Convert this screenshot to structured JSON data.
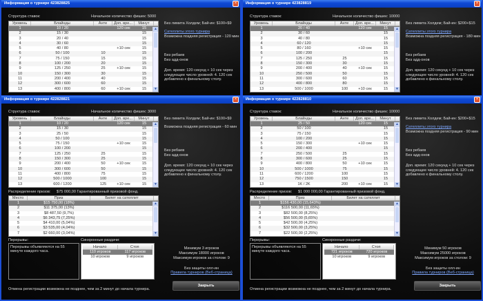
{
  "common": {
    "stakes_label": "Структура ставок:",
    "blind_headers": [
      "Уровень",
      "Блайнды",
      "Анте",
      "Доп. вре...",
      "Минут"
    ],
    "prize_headers": [
      "Место",
      "Приз",
      "Билет на сателлит"
    ],
    "sync_headers": [
      "Начало",
      "Стоп"
    ],
    "prizes_label": "Распределение призов:",
    "breaks_label": "Перерывы:",
    "breaks_text": "Перерывы объявляются на 55 минуте каждого часа.",
    "sync_label": "Синхронные раздачи:",
    "no_rebuys": "Без ребаев",
    "no_addons": "Без адд-онов",
    "extra_time": [
      "Доп. время: 120 секунд + 10 сек через",
      "следующее число уровней: 4. 120 сек",
      "добавлено к финальному столу."
    ],
    "satellites_link": "Сателлиты этого турнира",
    "max_table": "Максимум игроков за столом: 9",
    "no_allin": "Без защиты олл-ин",
    "rules_link": "Правила турниров (Веб-страница)",
    "close_label": "Закрыть",
    "cancel_text": "Отмена регистрации возможна не позднее, чем за 2 минут до начала турнира.",
    "close_icon": "×"
  },
  "windows": [
    {
      "title": "Информация о турнире 423828825",
      "start_chips": "Начальное количество фишек: 5000",
      "game": "Без лимита Холдем; Бай-ин: $100+$9",
      "has_satellites": true,
      "late_reg": "Возможна поздняя регистрация - 120 мин",
      "rows": [
        [
          "1",
          "10 / 20",
          "",
          "120 сек",
          "15"
        ],
        [
          "2",
          "15 / 30",
          "",
          "",
          "15"
        ],
        [
          "3",
          "20 / 40",
          "",
          "",
          "15"
        ],
        [
          "4",
          "30 / 60",
          "",
          "",
          "15"
        ],
        [
          "5",
          "40 / 80",
          "",
          "+10 сек",
          "15"
        ],
        [
          "6",
          "50 / 100",
          "10",
          "",
          "15"
        ],
        [
          "7",
          "75 / 150",
          "15",
          "",
          "15"
        ],
        [
          "8",
          "100 / 200",
          "20",
          "",
          "15"
        ],
        [
          "9",
          "125 / 250",
          "25",
          "+10 сек",
          "15"
        ],
        [
          "10",
          "150 / 300",
          "30",
          "",
          "15"
        ],
        [
          "11",
          "200 / 400",
          "40",
          "",
          "15"
        ],
        [
          "12",
          "300 / 600",
          "60",
          "",
          "15"
        ],
        [
          "13",
          "400 / 800",
          "60",
          "+10 сек",
          "15"
        ]
      ]
    },
    {
      "title": "Информация о турнире 423828819",
      "start_chips": "Начальное количество фишек: 10000",
      "game": "Без лимита Холдем; Бай-ин: $200+$15",
      "has_satellites": true,
      "late_reg": "Возможна поздняя регистрация - 180 мин",
      "rows": [
        [
          "1",
          "20 / 40",
          "",
          "120 сек",
          "15"
        ],
        [
          "2",
          "30 / 60",
          "",
          "",
          "15"
        ],
        [
          "3",
          "40 / 80",
          "",
          "",
          "15"
        ],
        [
          "4",
          "60 / 120",
          "",
          "",
          "15"
        ],
        [
          "5",
          "80 / 160",
          "",
          "+10 сек",
          "15"
        ],
        [
          "6",
          "100 / 200",
          "",
          "",
          "15"
        ],
        [
          "7",
          "125 / 250",
          "25",
          "",
          "15"
        ],
        [
          "8",
          "150 / 300",
          "30",
          "",
          "15"
        ],
        [
          "9",
          "200 / 400",
          "40",
          "+10 сек",
          "15"
        ],
        [
          "10",
          "250 / 500",
          "50",
          "",
          "15"
        ],
        [
          "11",
          "300 / 600",
          "60",
          "",
          "15"
        ],
        [
          "12",
          "400 / 800",
          "80",
          "",
          "15"
        ],
        [
          "13",
          "500 / 1000",
          "100",
          "+10 сек",
          "15"
        ]
      ]
    },
    {
      "title": "Информация о турнире 422828821",
      "start_chips": "Начальное количество фишек: 3000",
      "game": "Без лимита Холдем; Бай-ин: $100+$9",
      "has_satellites": false,
      "late_reg": "Возможна поздняя регистрация - 60 мин",
      "rows": [
        [
          "1",
          "10 / 20",
          "",
          "120 сек",
          "15"
        ],
        [
          "2",
          "15 / 30",
          "",
          "",
          "15"
        ],
        [
          "3",
          "25 / 50",
          "",
          "",
          "15"
        ],
        [
          "4",
          "50 / 100",
          "",
          "",
          "15"
        ],
        [
          "5",
          "75 / 150",
          "",
          "+10 сек",
          "15"
        ],
        [
          "6",
          "100 / 200",
          "",
          "",
          "15"
        ],
        [
          "7",
          "125 / 250",
          "25",
          "",
          "15"
        ],
        [
          "8",
          "150 / 300",
          "25",
          "",
          "15"
        ],
        [
          "9",
          "200 / 400",
          "50",
          "+10 сек",
          "15"
        ],
        [
          "10",
          "300 / 600",
          "50",
          "",
          "15"
        ],
        [
          "11",
          "400 / 800",
          "75",
          "",
          "15"
        ],
        [
          "12",
          "500 / 1000",
          "100",
          "",
          "15"
        ],
        [
          "13",
          "600 / 1200",
          "125",
          "+10 сек",
          "15"
        ]
      ],
      "prize_pool": "$75 000,00 Гарантированный призовой фонд.",
      "prizes": [
        [
          "1",
          "$15 750,00 (18%)",
          ""
        ],
        [
          "2",
          "$11 375,00 (13%)",
          ""
        ],
        [
          "3",
          "$8 487,50 (9,7%)",
          ""
        ],
        [
          "4",
          "$6 343,75 (7,25%)",
          ""
        ],
        [
          "5",
          "$4 410,00 (5,04%)",
          ""
        ],
        [
          "6",
          "$3 535,00 (4,04%)",
          ""
        ],
        [
          "7",
          "$2 660,00 (3,04%)",
          ""
        ]
      ],
      "sync_rows": [
        [
          "110 игроков",
          "117 игроков"
        ],
        [
          "10 игроков",
          "9 игроков"
        ]
      ],
      "min_players": "Минимум 3 игроков",
      "max_players": "Максимум 18000 игроков"
    },
    {
      "title": "Информация о турнире 422828810",
      "start_chips": "Начальное количество фишек: 10000",
      "game": "Без лимита Холдем; Бай-ин: $200+$15",
      "has_satellites": true,
      "late_reg": "Возможна поздняя регистрация - 90 мин",
      "rows": [
        [
          "1",
          "25 / 50",
          "",
          "120 сек",
          "15"
        ],
        [
          "2",
          "50 / 100",
          "",
          "",
          "15"
        ],
        [
          "3",
          "75 / 150",
          "",
          "",
          "15"
        ],
        [
          "4",
          "100 / 200",
          "",
          "",
          "15"
        ],
        [
          "5",
          "150 / 300",
          "",
          "+10 сек",
          "15"
        ],
        [
          "6",
          "200 / 400",
          "",
          "",
          "15"
        ],
        [
          "7",
          "250 / 500",
          "25",
          "",
          "15"
        ],
        [
          "8",
          "300 / 600",
          "25",
          "",
          "15"
        ],
        [
          "9",
          "400 / 800",
          "50",
          "+10 сек",
          "15"
        ],
        [
          "10",
          "500 / 1000",
          "75",
          "",
          "15"
        ],
        [
          "11",
          "600 / 1200",
          "100",
          "",
          "15"
        ],
        [
          "12",
          "750 / 1500",
          "150",
          "",
          "15"
        ],
        [
          "13",
          "1K / 2K",
          "200",
          "+10 сек",
          "15"
        ]
      ],
      "prize_pool": "$1 000 000,00 Гарантированный призовой фонд.",
      "prizes": [
        [
          "1",
          "$156 430,00 (15,643%)",
          ""
        ],
        [
          "2",
          "$116 500,00 (11,65%)",
          ""
        ],
        [
          "3",
          "$82 500,00 (8,25%)",
          ""
        ],
        [
          "4",
          "$56 500,00 (5,65%)",
          ""
        ],
        [
          "5",
          "$42 500,00 (4,25%)",
          ""
        ],
        [
          "6",
          "$32 500,00 (3,25%)",
          ""
        ],
        [
          "7",
          "$22 500,00 (2,25%)",
          ""
        ]
      ],
      "sync_rows": [
        [
          "721 игроков",
          "720 игроков"
        ],
        [
          "10 игроков",
          "9 игроков"
        ]
      ],
      "min_players": "Минимум 50 игроков",
      "max_players": "Максимум 25000 игроков"
    }
  ]
}
